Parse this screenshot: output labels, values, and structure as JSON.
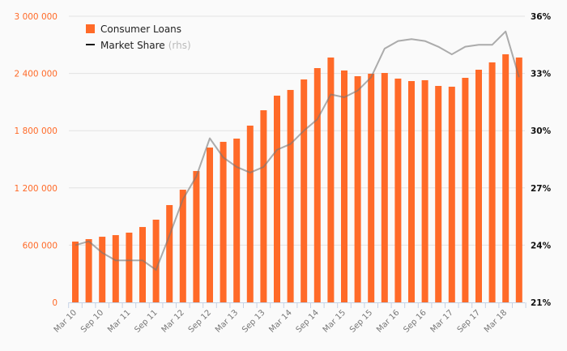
{
  "chart_data": {
    "type": "bar",
    "title": "",
    "legend": {
      "placement": "top-left",
      "items": [
        {
          "label": "Consumer Loans",
          "suffix": "",
          "color": "#ff6a28"
        },
        {
          "label": "Market Share",
          "suffix": "(rhs)",
          "color": "#111111"
        }
      ]
    },
    "categories": [
      "Mar 10",
      "Jun 10",
      "Sep 10",
      "Dec 10",
      "Mar 11",
      "Jun 11",
      "Sep 11",
      "Dec 11",
      "Mar 12",
      "Jun 12",
      "Sep 12",
      "Dec 12",
      "Mar 13",
      "Jun 13",
      "Sep 13",
      "Dec 13",
      "Mar 14",
      "Jun 14",
      "Sep 14",
      "Dec 14",
      "Mar 15",
      "Jun 15",
      "Sep 15",
      "Dec 15",
      "Mar 16",
      "Jun 16",
      "Sep 16",
      "Dec 16",
      "Mar 17",
      "Jun 17",
      "Sep 17",
      "Dec 17",
      "Mar 18",
      "Jun 18"
    ],
    "x_tick_labels": [
      "Mar 10",
      "Sep 10",
      "Mar 11",
      "Sep 11",
      "Mar 12",
      "Sep 12",
      "Mar 13",
      "Sep 13",
      "Mar 14",
      "Sep 14",
      "Mar 15",
      "Sep 15",
      "Mar 16",
      "Sep 16",
      "Mar 17",
      "Sep 17",
      "Mar 18"
    ],
    "series": [
      {
        "name": "Consumer Loans",
        "type": "bar",
        "axis": "left",
        "color": "#ff6a28",
        "values": [
          637000,
          663000,
          688000,
          705000,
          731000,
          790000,
          867000,
          1020000,
          1181000,
          1377000,
          1623000,
          1683000,
          1717000,
          1853000,
          2014000,
          2167000,
          2227000,
          2337000,
          2456000,
          2567000,
          2431000,
          2371000,
          2397000,
          2405000,
          2346000,
          2320000,
          2329000,
          2269000,
          2261000,
          2354000,
          2439000,
          2516000,
          2601000,
          2567000
        ]
      },
      {
        "name": "Market Share",
        "type": "line",
        "axis": "right",
        "color": "#999999",
        "values": [
          24.0,
          24.2,
          23.6,
          23.2,
          23.2,
          23.2,
          22.7,
          24.5,
          26.4,
          27.6,
          29.6,
          28.6,
          28.1,
          27.8,
          28.1,
          29.0,
          29.3,
          30.0,
          30.6,
          31.9,
          31.75,
          32.1,
          32.8,
          34.3,
          34.7,
          34.8,
          34.7,
          34.4,
          34.0,
          34.4,
          34.5,
          34.5,
          35.2,
          32.8
        ]
      }
    ],
    "y_left": {
      "label": "",
      "range": [
        0,
        3000000
      ],
      "ticks": [
        0,
        600000,
        1200000,
        1800000,
        2400000,
        3000000
      ],
      "tick_labels": [
        "0",
        "600 000",
        "1 200 000",
        "1 800 000",
        "2 400 000",
        "3 000 000"
      ]
    },
    "y_right": {
      "label": "",
      "range": [
        21,
        36
      ],
      "ticks": [
        21,
        24,
        27,
        30,
        33,
        36
      ],
      "tick_labels": [
        "21%",
        "24%",
        "27%",
        "30%",
        "33%",
        "36%"
      ]
    },
    "grid": true
  }
}
